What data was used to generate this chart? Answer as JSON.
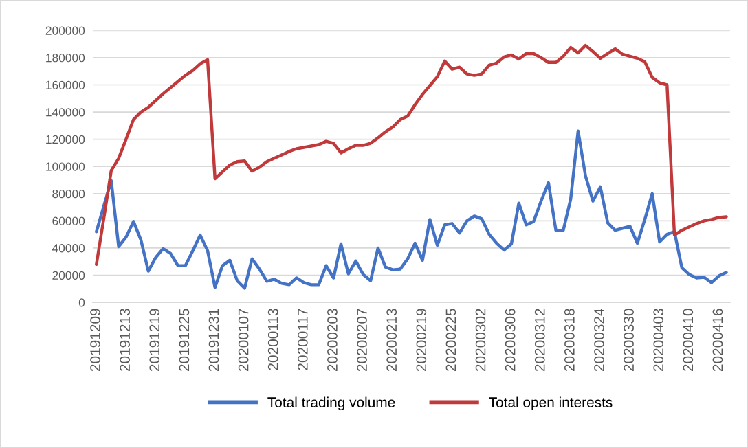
{
  "chart_data": {
    "type": "line",
    "categories": [
      "20191209",
      null,
      null,
      null,
      "20191213",
      null,
      null,
      null,
      "20191219",
      null,
      null,
      null,
      "20191225",
      null,
      null,
      null,
      "20191231",
      null,
      null,
      null,
      "20200107",
      null,
      null,
      null,
      "20200113",
      null,
      null,
      null,
      "20200117",
      null,
      null,
      null,
      "20200203",
      null,
      null,
      null,
      "20200207",
      null,
      null,
      null,
      "20200213",
      null,
      null,
      null,
      "20200219",
      null,
      null,
      null,
      "20200225",
      null,
      null,
      null,
      "20200302",
      null,
      null,
      null,
      "20200306",
      null,
      null,
      null,
      "20200312",
      null,
      null,
      null,
      "20200318",
      null,
      null,
      null,
      "20200324",
      null,
      null,
      null,
      "20200330",
      null,
      null,
      null,
      "20200403",
      null,
      null,
      null,
      "20200410",
      null,
      null,
      null,
      "20200416",
      null
    ],
    "series": [
      {
        "name": "Total trading volume",
        "color": "#4472c4",
        "values": [
          52000,
          71000,
          89500,
          41000,
          48000,
          59500,
          46000,
          23000,
          33000,
          39500,
          36000,
          27000,
          27000,
          38000,
          49500,
          38000,
          11000,
          27000,
          31000,
          16000,
          10500,
          32000,
          24500,
          15500,
          17000,
          14000,
          13000,
          18000,
          14500,
          13000,
          13000,
          27000,
          18000,
          43000,
          21000,
          30500,
          20500,
          16000,
          40000,
          26000,
          24000,
          24500,
          32000,
          43500,
          31000,
          61000,
          42000,
          57000,
          58000,
          51000,
          60000,
          63500,
          61500,
          50000,
          43500,
          38500,
          43000,
          73000,
          57000,
          59500,
          74500,
          88000,
          53000,
          53000,
          76000,
          126000,
          93000,
          74500,
          85000,
          58500,
          53000,
          54500,
          56000,
          43500,
          61000,
          80000,
          44500,
          50000,
          52000,
          25500,
          20500,
          18000,
          18500,
          14500,
          19500,
          22000
        ]
      },
      {
        "name": "Total open interests",
        "color": "#c0393b",
        "values": [
          28000,
          62000,
          97000,
          106000,
          120000,
          134500,
          140000,
          143500,
          148500,
          153500,
          158000,
          162500,
          167000,
          170500,
          175500,
          178500,
          91000,
          96000,
          101000,
          103500,
          104000,
          96500,
          99500,
          103500,
          106000,
          108500,
          111000,
          113000,
          114000,
          115000,
          116000,
          118500,
          117000,
          110000,
          113000,
          115500,
          115500,
          117000,
          121000,
          125500,
          129000,
          134500,
          137000,
          145500,
          153000,
          159500,
          166000,
          177500,
          171500,
          173000,
          168000,
          167000,
          168000,
          174500,
          176000,
          180500,
          182000,
          179000,
          183000,
          183000,
          180000,
          176500,
          176500,
          181000,
          187500,
          183500,
          189000,
          184500,
          179500,
          183000,
          186500,
          182500,
          181000,
          179500,
          177000,
          165500,
          161500,
          160000,
          49500,
          53000,
          55500,
          58000,
          60000,
          61000,
          62500,
          63000
        ]
      }
    ],
    "ylim": [
      0,
      200000
    ],
    "yticks": [
      0,
      20000,
      40000,
      60000,
      80000,
      100000,
      120000,
      140000,
      160000,
      180000,
      200000
    ],
    "grid": "y",
    "legend": "bottom",
    "line_style": "solid"
  }
}
